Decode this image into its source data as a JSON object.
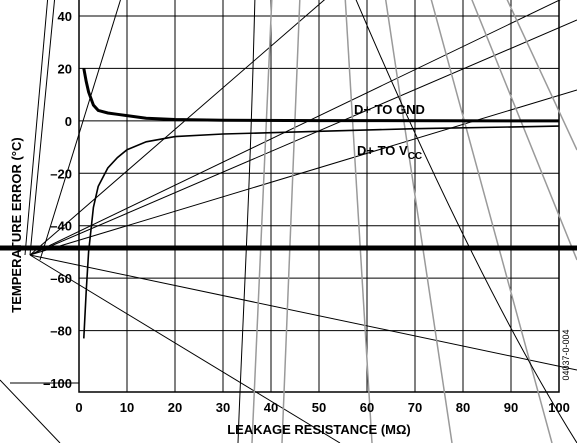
{
  "chart_data": {
    "type": "line",
    "xlabel": "LEAKAGE RESISTANCE (MΩ)",
    "ylabel": "TEMPERATURE ERROR (°C)",
    "xlim": [
      0,
      100
    ],
    "ylim": [
      -100,
      40
    ],
    "x_ticks": [
      "0",
      "10",
      "20",
      "30",
      "40",
      "50",
      "60",
      "70",
      "80",
      "90",
      "100"
    ],
    "y_ticks": [
      "40",
      "20",
      "0",
      "–20",
      "–40",
      "–60",
      "–80",
      "–100"
    ],
    "grid": true,
    "series": [
      {
        "name": "D+ TO GND",
        "points": [
          [
            1,
            20
          ],
          [
            1.5,
            15
          ],
          [
            2,
            11
          ],
          [
            3,
            6
          ],
          [
            4,
            4
          ],
          [
            6,
            3
          ],
          [
            8,
            2.5
          ],
          [
            10,
            2
          ],
          [
            14,
            1
          ],
          [
            20,
            0.5
          ],
          [
            30,
            0.2
          ],
          [
            50,
            0.1
          ],
          [
            100,
            0
          ]
        ]
      },
      {
        "name": "D+ TO VCC",
        "points": [
          [
            1,
            -83
          ],
          [
            1.5,
            -65
          ],
          [
            2,
            -50
          ],
          [
            3,
            -33
          ],
          [
            4,
            -25
          ],
          [
            6,
            -18
          ],
          [
            8,
            -14
          ],
          [
            10,
            -11
          ],
          [
            14,
            -8
          ],
          [
            20,
            -6
          ],
          [
            30,
            -5
          ],
          [
            40,
            -4.5
          ],
          [
            50,
            -4
          ],
          [
            70,
            -3
          ],
          [
            100,
            -2
          ]
        ]
      }
    ]
  },
  "annotations": {
    "gnd_label": "D+ TO GND",
    "vcc_label": "D+ TO V",
    "vcc_sub": "CC"
  },
  "figure_id": "04037-0-004"
}
